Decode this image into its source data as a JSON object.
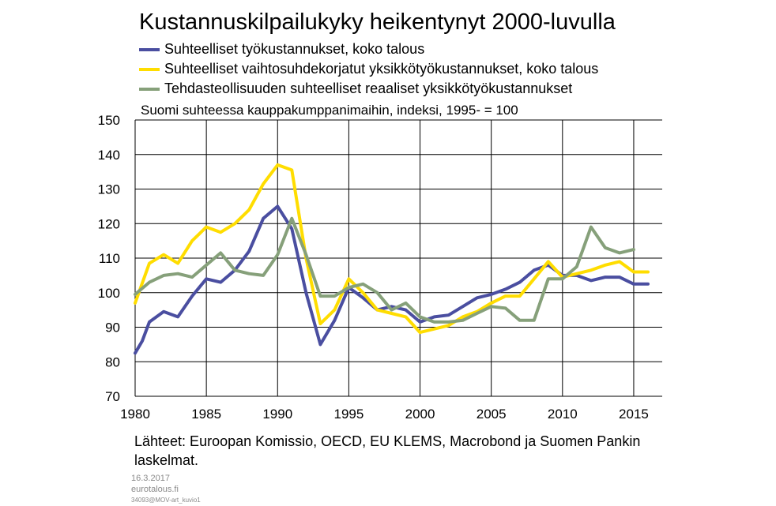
{
  "title": "Kustannuskilpailukyky heikentynyt 2000-luvulla",
  "subtitle": "Suomi suhteessa kauppakumppanimaihin,  indeksi, 1995- = 100",
  "source": "Lähteet: Euroopan Komissio, OECD, EU KLEMS, Macrobond ja Suomen Pankin laskelmat.",
  "footer": {
    "date": "16.3.2017",
    "site": "eurotalous.fi",
    "code": "34093@MOV-art_kuvio1"
  },
  "chart_data": {
    "type": "line",
    "xlim": [
      1980,
      2017
    ],
    "ylim": [
      70,
      150
    ],
    "x_ticks": [
      1980,
      1985,
      1990,
      1995,
      2000,
      2005,
      2010,
      2015
    ],
    "y_ticks": [
      70,
      80,
      90,
      100,
      110,
      120,
      130,
      140,
      150
    ],
    "grid": true,
    "legend_position": "top",
    "series": [
      {
        "name": "Suhteelliset työkustannukset, koko talous",
        "color": "#4a4ea0",
        "x": [
          1980,
          1980.5,
          1981,
          1982,
          1983,
          1984,
          1985,
          1986,
          1987,
          1988,
          1989,
          1990,
          1991,
          1992,
          1993,
          1994,
          1995,
          1996,
          1997,
          1998,
          1999,
          2000,
          2001,
          2002,
          2003,
          2004,
          2005,
          2006,
          2007,
          2008,
          2009,
          2010,
          2011,
          2012,
          2013,
          2014,
          2015,
          2016
        ],
        "y": [
          82.5,
          86,
          91.5,
          94.5,
          93,
          99,
          104,
          103,
          106.5,
          112,
          121.5,
          125,
          118.5,
          100,
          85,
          92,
          101.5,
          98.5,
          95,
          96,
          95,
          91.5,
          93,
          93.5,
          96,
          98.5,
          99.5,
          101,
          103,
          106.5,
          108,
          105,
          105,
          103.5,
          104.5,
          104.5,
          102.5,
          102.5
        ]
      },
      {
        "name": "Suhteelliset vaihtosuhdekorjatut yksikkötyökustannukset, koko talous",
        "color": "#ffdd00",
        "x": [
          1980,
          1981,
          1982,
          1983,
          1984,
          1985,
          1986,
          1987,
          1988,
          1989,
          1990,
          1991,
          1992,
          1993,
          1994,
          1995,
          1996,
          1997,
          1998,
          1999,
          2000,
          2001,
          2002,
          2003,
          2004,
          2005,
          2006,
          2007,
          2008,
          2009,
          2010,
          2011,
          2012,
          2013,
          2014,
          2015,
          2016
        ],
        "y": [
          97,
          108.5,
          111,
          108.5,
          115,
          119,
          117.5,
          120,
          124,
          131.5,
          137,
          135.5,
          110,
          91,
          95,
          104,
          100,
          95,
          94,
          93,
          88.5,
          89.5,
          90.5,
          93,
          94.5,
          97,
          99,
          99,
          104,
          109,
          104.5,
          105.5,
          106.5,
          108,
          109,
          106,
          106
        ]
      },
      {
        "name": "Tehdasteollisuuden suhteelliset reaaliset yksikkötyökustannukset",
        "color": "#86a07a",
        "x": [
          1980,
          1981,
          1982,
          1983,
          1984,
          1985,
          1986,
          1987,
          1988,
          1989,
          1990,
          1991,
          1992,
          1993,
          1994,
          1995,
          1996,
          1997,
          1998,
          1999,
          2000,
          2001,
          2002,
          2003,
          2004,
          2005,
          2006,
          2007,
          2008,
          2009,
          2010,
          2011,
          2012,
          2013,
          2014,
          2015
        ],
        "y": [
          99.5,
          103,
          105,
          105.5,
          104.5,
          108,
          111.5,
          106.5,
          105.5,
          105,
          111,
          121.5,
          111,
          99,
          99,
          101.5,
          102.5,
          100,
          95,
          97,
          93,
          91.5,
          91.5,
          92,
          94,
          96,
          95.5,
          92,
          92,
          104,
          104,
          107.5,
          119,
          113,
          111.5,
          112.5
        ]
      }
    ]
  }
}
